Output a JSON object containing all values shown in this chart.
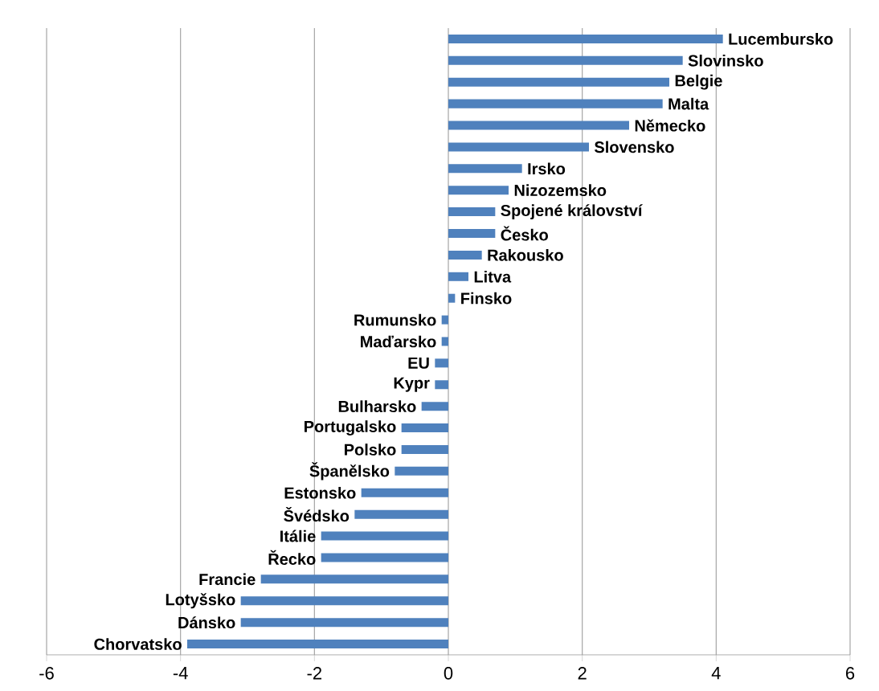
{
  "chart_data": {
    "type": "bar",
    "orientation": "horizontal",
    "categories": [
      "Lucembursko",
      "Slovinsko",
      "Belgie",
      "Malta",
      "Německo",
      "Slovensko",
      "Irsko",
      "Nizozemsko",
      "Spojené království",
      "Česko",
      "Rakousko",
      "Litva",
      "Finsko",
      "Rumunsko",
      "Maďarsko",
      "EU",
      "Kypr",
      "Bulharsko",
      "Portugalsko",
      "Polsko",
      "Španělsko",
      "Estonsko",
      "Švédsko",
      "Itálie",
      "Řecko",
      "Francie",
      "Lotyšsko",
      "Dánsko",
      "Chorvatsko"
    ],
    "values": [
      4.1,
      3.5,
      3.3,
      3.2,
      2.7,
      2.1,
      1.1,
      0.9,
      0.7,
      0.7,
      0.5,
      0.3,
      0.1,
      -0.1,
      -0.1,
      -0.2,
      -0.2,
      -0.4,
      -0.7,
      -0.7,
      -0.8,
      -1.3,
      -1.4,
      -1.9,
      -1.9,
      -2.8,
      -3.1,
      -3.1,
      -3.9
    ],
    "color": "#4f81bd",
    "xlim": [
      -6,
      6
    ],
    "xticks": [
      -6,
      -4,
      -2,
      0,
      2,
      4,
      6
    ],
    "grid": "x"
  }
}
